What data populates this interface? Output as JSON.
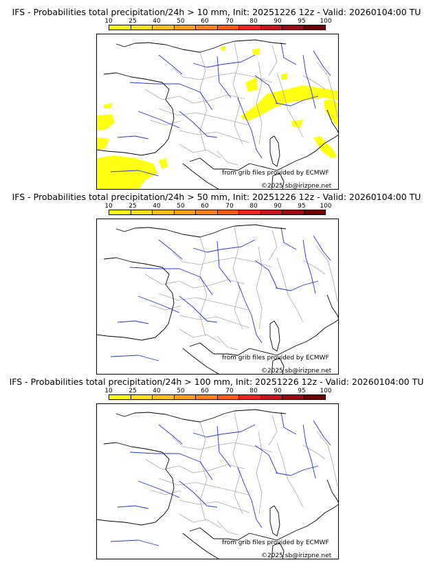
{
  "colorbar": {
    "ticks": [
      "10",
      "25",
      "40",
      "50",
      "60",
      "70",
      "80",
      "90",
      "95",
      "100"
    ],
    "colors": [
      "#ffff14",
      "#ffe01a",
      "#ffbf1a",
      "#ff9f1a",
      "#ff7f1a",
      "#ff5a14",
      "#f22222",
      "#c8141e",
      "#9e0a14",
      "#6e0000"
    ]
  },
  "colors": {
    "rivers": "#2233dd",
    "coast": "#000000",
    "borders": "#aaaaaa",
    "precip": "#ffff14"
  },
  "panels": [
    {
      "title": "IFS - Probabilities total precipitation/24h > 10 mm, Init: 20251226 12z - Valid: 20260104:00 TU",
      "credit_source": "from grib files provided by ECMWF",
      "credit_copyright": "©2025 sb@irizpne.net",
      "precip_areas": [
        "alps",
        "northeast-spots",
        "corsica-east",
        "italy-west",
        "spain-north",
        "bay-of-biscay"
      ]
    },
    {
      "title": "IFS - Probabilities total precipitation/24h > 50 mm, Init: 20251226 12z - Valid: 20260104:00 TU",
      "credit_source": "from grib files provided by ECMWF",
      "credit_copyright": "©2025 sb@irizpne.net",
      "precip_areas": []
    },
    {
      "title": "IFS - Probabilities total precipitation/24h > 100 mm, Init: 20251226 12z - Valid: 20260104:00 TU",
      "credit_source": "from grib files provided by ECMWF",
      "credit_copyright": "©2025 sb@irizpne.net",
      "precip_areas": []
    }
  ]
}
